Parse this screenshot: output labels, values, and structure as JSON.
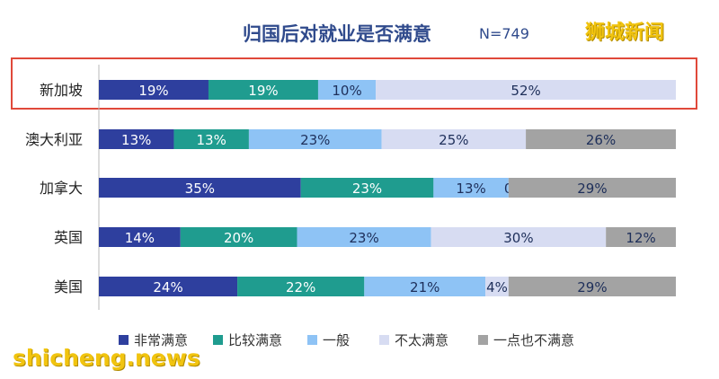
{
  "header": {
    "title": "归国后对就业是否满意",
    "n_label": "N=749",
    "brand": "狮城新闻"
  },
  "watermark": "shicheng.news",
  "colors": {
    "title": "#2f4a8c",
    "highlight_border": "#e0493a",
    "series": [
      "#2e3f9e",
      "#1f9c8f",
      "#8ec3f5",
      "#d7dcf2",
      "#a3a3a3"
    ]
  },
  "chart_data": {
    "type": "bar",
    "orientation": "horizontal",
    "stacked": true,
    "percent_stacked": true,
    "title": "归国后对就业是否满意",
    "subtitle": "N=749",
    "categories": [
      "新加坡",
      "澳大利亚",
      "加拿大",
      "英国",
      "美国"
    ],
    "series": [
      {
        "name": "非常满意",
        "values": [
          19,
          13,
          35,
          14,
          24
        ]
      },
      {
        "name": "比较满意",
        "values": [
          19,
          13,
          23,
          20,
          22
        ]
      },
      {
        "name": "一般",
        "values": [
          10,
          23,
          13,
          23,
          21
        ]
      },
      {
        "name": "不太满意",
        "values": [
          52,
          25,
          0,
          30,
          4
        ]
      },
      {
        "name": "一点也不满意",
        "values": [
          null,
          26,
          29,
          12,
          29
        ]
      }
    ],
    "highlighted_category": "新加坡",
    "legend_position": "bottom",
    "grid": false
  }
}
